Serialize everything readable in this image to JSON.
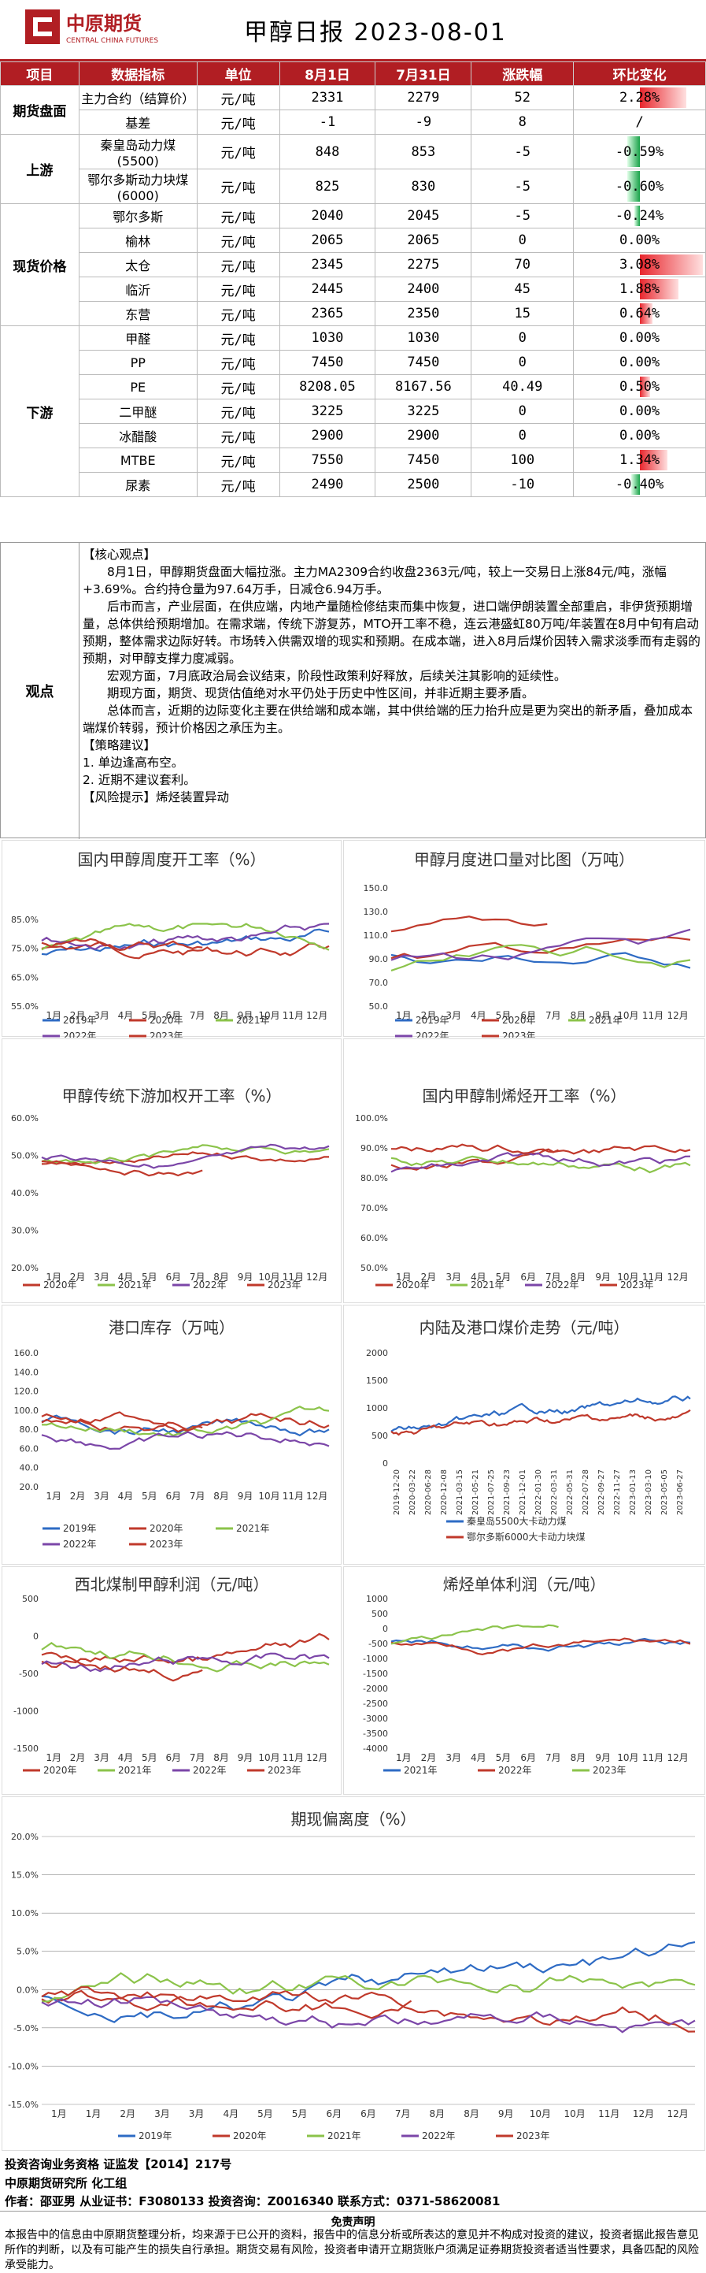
{
  "header": {
    "logo_cn": "中原期货",
    "logo_en": "CENTRAL CHINA FUTURES",
    "title": "甲醇日报  2023-08-01"
  },
  "table": {
    "headers": [
      "项目",
      "数据指标",
      "单位",
      "8月1日",
      "7月31日",
      "涨跌幅",
      "环比变化"
    ],
    "rows": [
      {
        "cat": "期货盘面",
        "span": 2,
        "ind": "主力合约（结算价）",
        "unit": "元/吨",
        "d1": "2331",
        "d2": "2279",
        "chg": "52",
        "pct": "2.28%",
        "val": 2.28
      },
      {
        "cat": "",
        "span": 0,
        "ind": "基差",
        "unit": "元/吨",
        "d1": "-1",
        "d2": "-9",
        "chg": "8",
        "pct": "/",
        "val": 0
      },
      {
        "cat": "上游",
        "span": 2,
        "ind": "秦皇岛动力煤\n(5500)",
        "unit": "元/吨",
        "d1": "848",
        "d2": "853",
        "chg": "-5",
        "pct": "-0.59%",
        "val": -0.59,
        "tall": true
      },
      {
        "cat": "",
        "span": 0,
        "ind": "鄂尔多斯动力块煤\n(6000)",
        "unit": "元/吨",
        "d1": "825",
        "d2": "830",
        "chg": "-5",
        "pct": "-0.60%",
        "val": -0.6,
        "tall": true
      },
      {
        "cat": "现货价格",
        "span": 5,
        "ind": "鄂尔多斯",
        "unit": "元/吨",
        "d1": "2040",
        "d2": "2045",
        "chg": "-5",
        "pct": "-0.24%",
        "val": -0.24
      },
      {
        "cat": "",
        "span": 0,
        "ind": "榆林",
        "unit": "元/吨",
        "d1": "2065",
        "d2": "2065",
        "chg": "0",
        "pct": "0.00%",
        "val": 0
      },
      {
        "cat": "",
        "span": 0,
        "ind": "太仓",
        "unit": "元/吨",
        "d1": "2345",
        "d2": "2275",
        "chg": "70",
        "pct": "3.08%",
        "val": 3.08
      },
      {
        "cat": "",
        "span": 0,
        "ind": "临沂",
        "unit": "元/吨",
        "d1": "2445",
        "d2": "2400",
        "chg": "45",
        "pct": "1.88%",
        "val": 1.88
      },
      {
        "cat": "",
        "span": 0,
        "ind": "东营",
        "unit": "元/吨",
        "d1": "2365",
        "d2": "2350",
        "chg": "15",
        "pct": "0.64%",
        "val": 0.64
      },
      {
        "cat": "下游",
        "span": 7,
        "ind": "甲醛",
        "unit": "元/吨",
        "d1": "1030",
        "d2": "1030",
        "chg": "0",
        "pct": "0.00%",
        "val": 0
      },
      {
        "cat": "",
        "span": 0,
        "ind": "PP",
        "unit": "元/吨",
        "d1": "7450",
        "d2": "7450",
        "chg": "0",
        "pct": "0.00%",
        "val": 0
      },
      {
        "cat": "",
        "span": 0,
        "ind": "PE",
        "unit": "元/吨",
        "d1": "8208.05",
        "d2": "8167.56",
        "chg": "40.49",
        "pct": "0.50%",
        "val": 0.5
      },
      {
        "cat": "",
        "span": 0,
        "ind": "二甲醚",
        "unit": "元/吨",
        "d1": "3225",
        "d2": "3225",
        "chg": "0",
        "pct": "0.00%",
        "val": 0
      },
      {
        "cat": "",
        "span": 0,
        "ind": "冰醋酸",
        "unit": "元/吨",
        "d1": "2900",
        "d2": "2900",
        "chg": "0",
        "pct": "0.00%",
        "val": 0
      },
      {
        "cat": "",
        "span": 0,
        "ind": "MTBE",
        "unit": "元/吨",
        "d1": "7550",
        "d2": "7450",
        "chg": "100",
        "pct": "1.34%",
        "val": 1.34
      },
      {
        "cat": "",
        "span": 0,
        "ind": "尿素",
        "unit": "元/吨",
        "d1": "2490",
        "d2": "2500",
        "chg": "-10",
        "pct": "-0.40%",
        "val": -0.4
      }
    ],
    "colors": {
      "pos": "#e8262d",
      "neg": "#1aa34a"
    }
  },
  "view": {
    "label": "观点",
    "paras": [
      {
        "t": "【核心观点】",
        "i": false
      },
      {
        "t": "8月1日，甲醇期货盘面大幅拉涨。主力MA2309合约收盘2363元/吨，较上一交易日上涨84元/吨，涨幅+3.69%。合约持仓量为97.64万手，日减仓6.94万手。",
        "i": true
      },
      {
        "t": "后市而言，产业层面，在供应端，内地产量随检修结束而集中恢复，进口端伊朗装置全部重启，非伊货预期增量，总体供给预期增加。在需求端，传统下游复苏，MTO开工率不稳，连云港盛虹80万吨/年装置在8月中旬有启动预期，整体需求边际好转。市场转入供需双增的现实和预期。在成本端，进入8月后煤价因转入需求淡季而有走弱的预期，对甲醇支撑力度减弱。",
        "i": true
      },
      {
        "t": "宏观方面，7月底政治局会议结束，阶段性政策利好释放，后续关注其影响的延续性。",
        "i": true
      },
      {
        "t": "期现方面，期货、现货估值绝对水平仍处于历史中性区间，并非近期主要矛盾。",
        "i": true
      },
      {
        "t": "总体而言，近期的边际变化主要在供给端和成本端，其中供给端的压力抬升应是更为突出的新矛盾，叠加成本端煤价转弱，预计价格因之承压为主。",
        "i": true
      },
      {
        "t": "【策略建议】",
        "i": false
      },
      {
        "t": "1. 单边逢高布空。",
        "i": false
      },
      {
        "t": "2. 近期不建议套利。",
        "i": false
      },
      {
        "t": "【风险提示】烯烃装置异动",
        "i": false
      }
    ]
  },
  "charts": {
    "c1": {
      "title": "国内甲醇周度开工率（%）",
      "yticks": [
        "85.0%",
        "75.0%",
        "65.0%",
        "55.0%"
      ],
      "xticks": [
        "1月",
        "2月",
        "3月",
        "4月",
        "5月",
        "6月",
        "7月",
        "8月",
        "9月",
        "10月",
        "11月",
        "12月"
      ],
      "legend": [
        "2019年",
        "2020年",
        "2021年",
        "2022年",
        "2023年"
      ]
    },
    "c2": {
      "title": "甲醇月度进口量对比图（万吨）",
      "yticks": [
        "150.0",
        "130.0",
        "110.0",
        "90.0",
        "70.0",
        "50.0"
      ],
      "xticks": [
        "1月",
        "2月",
        "3月",
        "4月",
        "5月",
        "6月",
        "7月",
        "8月",
        "9月",
        "10月",
        "11月",
        "12月"
      ],
      "legend": [
        "2019年",
        "2020年",
        "2021年",
        "2022年",
        "2023年"
      ]
    },
    "c3": {
      "title": "甲醇传统下游加权开工率（%）",
      "yticks": [
        "60.0%",
        "50.0%",
        "40.0%",
        "30.0%",
        "20.0%"
      ],
      "xticks": [
        "1月",
        "2月",
        "3月",
        "4月",
        "5月",
        "6月",
        "7月",
        "8月",
        "9月",
        "10月",
        "11月",
        "12月"
      ],
      "legend": [
        "2020年",
        "2021年",
        "2022年",
        "2023年"
      ]
    },
    "c4": {
      "title": "国内甲醇制烯烃开工率（%）",
      "yticks": [
        "100.0%",
        "90.0%",
        "80.0%",
        "70.0%",
        "60.0%",
        "50.0%"
      ],
      "xticks": [
        "1月",
        "2月",
        "3月",
        "4月",
        "5月",
        "6月",
        "7月",
        "8月",
        "9月",
        "10月",
        "11月",
        "12月"
      ],
      "legend": [
        "2020年",
        "2021年",
        "2022年",
        "2023年"
      ]
    },
    "c5": {
      "title": "港口库存（万吨）",
      "yticks": [
        "160.0",
        "140.0",
        "120.0",
        "100.0",
        "80.0",
        "60.0",
        "40.0",
        "20.0"
      ],
      "xticks": [
        "1月",
        "2月",
        "3月",
        "4月",
        "5月",
        "6月",
        "7月",
        "8月",
        "9月",
        "10月",
        "11月",
        "12月"
      ],
      "legend": [
        "2019年",
        "2020年",
        "2021年",
        "2022年",
        "2023年"
      ]
    },
    "c6": {
      "title": "内陆及港口煤价走势（元/吨）",
      "yticks": [
        "2000",
        "1500",
        "1000",
        "500",
        "0"
      ],
      "xticks": [
        "2019-12-20",
        "2020-03-22",
        "2020-06-28",
        "2020-12-08",
        "2021-03-15",
        "2021-05-21",
        "2021-07-25",
        "2021-09-23",
        "2021-12-01",
        "2022-01-30",
        "2022-03-31",
        "2022-05-31",
        "2022-07-28",
        "2022-09-27",
        "2022-11-27",
        "2023-01-13",
        "2023-03-10",
        "2023-05-05",
        "2023-06-27"
      ],
      "legend": [
        "秦皇岛5500大卡动力煤",
        "鄂尔多斯6000大卡动力块煤"
      ]
    },
    "c7": {
      "title": "西北煤制甲醇利润（元/吨）",
      "yticks": [
        "500",
        "0",
        "-500",
        "-1000",
        "-1500"
      ],
      "xticks": [
        "1月",
        "2月",
        "3月",
        "4月",
        "5月",
        "6月",
        "7月",
        "8月",
        "9月",
        "10月",
        "11月",
        "12月"
      ],
      "legend": [
        "2020年",
        "2021年",
        "2022年",
        "2023年"
      ]
    },
    "c8": {
      "title": "烯烃单体利润（元/吨）",
      "yticks": [
        "1000",
        "500",
        "0",
        "-500",
        "-1000",
        "-1500",
        "-2000",
        "-2500",
        "-3000",
        "-3500",
        "-4000"
      ],
      "xticks": [
        "1月",
        "2月",
        "3月",
        "4月",
        "5月",
        "6月",
        "7月",
        "8月",
        "9月",
        "10月",
        "11月",
        "12月"
      ],
      "legend": [
        "2021年",
        "2022年",
        "2023年"
      ]
    },
    "c9": {
      "title": "期现偏离度（%）",
      "yticks": [
        "20.0%",
        "15.0%",
        "10.0%",
        "5.0%",
        "0.0%",
        "-5.0%",
        "-10.0%",
        "-15.0%"
      ],
      "xticks": [
        "1月",
        "1月",
        "2月",
        "3月",
        "3月",
        "4月",
        "5月",
        "5月",
        "6月",
        "6月",
        "7月",
        "8月",
        "8月",
        "9月",
        "10月",
        "10月",
        "11月",
        "12月",
        "12月"
      ],
      "legend": [
        "2019年",
        "2020年",
        "2021年",
        "2022年",
        "2023年"
      ]
    }
  },
  "footer": {
    "line1": "投资咨询业务资格    证监发【2014】217号",
    "line2": "中原期货研究所    化工组",
    "line3": "作者：邵亚男         从业证书：F3080133         投资咨询：Z0016340         联系方式：0371-58620081",
    "disc_title": "免责声明",
    "disc_text": "本报告中的信息由中原期货整理分析，均来源于已公开的资料，报告中的信息分析或所表达的意见并不构成对投资的建议，投资者据此报告意见所作的判断，以及有可能产生的损失自行承担。期货交易有风险，投资者申请开立期货账户须满足证券期货投资者适当性要求，具备匹配的风险承受能力。"
  }
}
